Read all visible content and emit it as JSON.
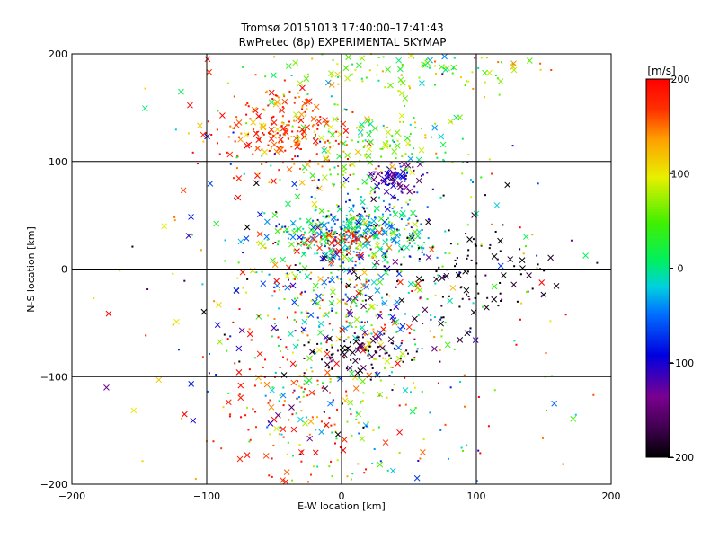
{
  "chart_data": {
    "type": "scatter",
    "title": "Tromsø 20151013 17:40:00–17:41:43",
    "subtitle": "RwPretec (8p) EXPERIMENTAL SKYMAP",
    "xlabel": "E-W location [km]",
    "ylabel": "N-S location [km]",
    "xlim": [
      -200,
      200
    ],
    "ylim": [
      -200,
      200
    ],
    "xticks": [
      -200,
      -100,
      0,
      100,
      200
    ],
    "yticks": [
      -200,
      -100,
      0,
      100,
      200
    ],
    "grid": true,
    "colorbar": {
      "label": "[m/s]",
      "range": [
        -200,
        200
      ],
      "ticks": [
        200,
        100,
        0,
        -100,
        -200
      ],
      "colormap": "rainbow (black-purple-blue-cyan-green-yellow-red)"
    },
    "markers": {
      "small": "dot",
      "large": "cross"
    },
    "clusters": [
      {
        "name": "upper-left red",
        "cx": -45,
        "cy": 130,
        "sx": 25,
        "sy": 20,
        "n": 220,
        "v": 170,
        "vs": 30
      },
      {
        "name": "north green/yellow",
        "cx": 20,
        "cy": 115,
        "sx": 35,
        "sy": 20,
        "n": 160,
        "v": 60,
        "vs": 40
      },
      {
        "name": "top band",
        "cx": 40,
        "cy": 185,
        "sx": 55,
        "sy": 12,
        "n": 120,
        "v": 70,
        "vs": 50
      },
      {
        "name": "blue blob",
        "cx": 40,
        "cy": 85,
        "sx": 10,
        "sy": 8,
        "n": 90,
        "v": -120,
        "vs": 30
      },
      {
        "name": "central cyan/green",
        "cx": 10,
        "cy": 35,
        "sx": 30,
        "sy": 15,
        "n": 420,
        "v": -10,
        "vs": 60
      },
      {
        "name": "central red",
        "cx": 0,
        "cy": 25,
        "sx": 15,
        "sy": 6,
        "n": 60,
        "v": 180,
        "vs": 15
      },
      {
        "name": "east black",
        "cx": 90,
        "cy": 0,
        "sx": 40,
        "sy": 25,
        "n": 110,
        "v": -190,
        "vs": 12
      },
      {
        "name": "middle mixed",
        "cx": 5,
        "cy": -30,
        "sx": 40,
        "sy": 30,
        "n": 300,
        "v": 10,
        "vs": 110
      },
      {
        "name": "lower black",
        "cx": 10,
        "cy": -80,
        "sx": 20,
        "sy": 10,
        "n": 90,
        "v": -180,
        "vs": 20
      },
      {
        "name": "lower mixed",
        "cx": 0,
        "cy": -130,
        "sx": 45,
        "sy": 40,
        "n": 180,
        "v": 60,
        "vs": 110
      },
      {
        "name": "lower-left red",
        "cx": -45,
        "cy": -140,
        "sx": 25,
        "sy": 40,
        "n": 90,
        "v": 180,
        "vs": 20
      },
      {
        "name": "diffuse",
        "cx": 0,
        "cy": 0,
        "sx": 110,
        "sy": 110,
        "n": 260,
        "v": 0,
        "vs": 130
      }
    ]
  }
}
